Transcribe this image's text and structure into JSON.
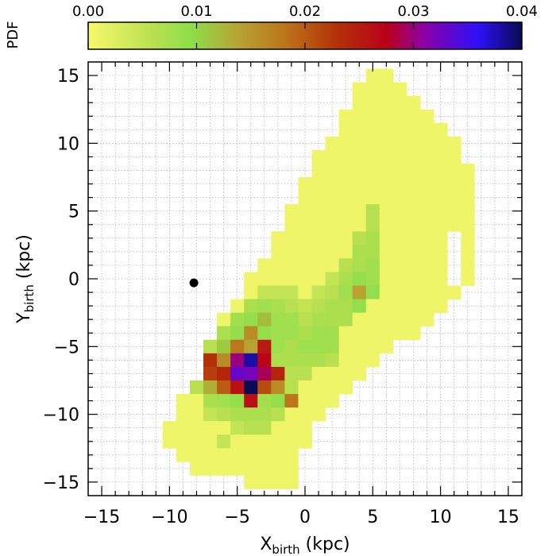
{
  "chart_data": {
    "type": "heatmap",
    "title": "",
    "xlabel": "X",
    "xlabel_sub": "birth",
    "xlabel_unit": " (kpc)",
    "ylabel": "Y",
    "ylabel_sub": "birth",
    "ylabel_unit": " (kpc)",
    "xlim": [
      -16,
      16
    ],
    "ylim": [
      -16,
      16
    ],
    "xticks": [
      -15,
      -10,
      -5,
      0,
      5,
      10,
      15
    ],
    "yticks": [
      -15,
      -10,
      -5,
      0,
      5,
      10,
      15
    ],
    "xtick_labels": [
      "−15",
      "−10",
      "−5",
      "0",
      "5",
      "10",
      "15"
    ],
    "ytick_labels": [
      "−15",
      "−10",
      "−5",
      "0",
      "5",
      "10",
      "15"
    ],
    "grid_step": 1,
    "grid": true,
    "bin_size": 1,
    "colorbar": {
      "label": "PDF",
      "min": 0.0,
      "max": 0.04,
      "ticks": [
        0.0,
        0.01,
        0.02,
        0.03,
        0.04
      ],
      "tick_labels": [
        "0.00",
        "0.01",
        "0.02",
        "0.03",
        "0.04"
      ],
      "stops": [
        {
          "v": 0.0,
          "color": "#f8f86c"
        },
        {
          "v": 0.006,
          "color": "#b8e050"
        },
        {
          "v": 0.0095,
          "color": "#8ede4a"
        },
        {
          "v": 0.014,
          "color": "#b8a232"
        },
        {
          "v": 0.0185,
          "color": "#bc7018"
        },
        {
          "v": 0.023,
          "color": "#b43008"
        },
        {
          "v": 0.0275,
          "color": "#ba0018"
        },
        {
          "v": 0.031,
          "color": "#8c00a8"
        },
        {
          "v": 0.036,
          "color": "#2c10f8"
        },
        {
          "v": 0.04,
          "color": "#0a0a52"
        }
      ]
    },
    "default_value": 0.0008,
    "marker": {
      "x": -8.2,
      "y": -0.3,
      "label": "Sun position"
    },
    "occupied_rows": [
      {
        "y": 15,
        "x_from": 5,
        "x_to": 6
      },
      {
        "y": 14,
        "x_from": 4,
        "x_to": 7
      },
      {
        "y": 13,
        "x_from": 4,
        "x_to": 8
      },
      {
        "y": 12,
        "x_from": 3,
        "x_to": 9
      },
      {
        "y": 11,
        "x_from": 3,
        "x_to": 10
      },
      {
        "y": 10,
        "x_from": 2,
        "x_to": 11
      },
      {
        "y": 9,
        "x_from": 1,
        "x_to": 12
      },
      {
        "y": 8,
        "x_from": 1,
        "x_to": 12
      },
      {
        "y": 7,
        "x_from": 0,
        "x_to": 12
      },
      {
        "y": 6,
        "x_from": 0,
        "x_to": 12
      },
      {
        "y": 5,
        "x_from": -1,
        "x_to": 12
      },
      {
        "y": 4,
        "x_from": -1,
        "x_to": 12
      },
      {
        "y": 3,
        "x_from": -2,
        "x_to": 12
      },
      {
        "y": 2,
        "x_from": -2,
        "x_to": 12
      },
      {
        "y": 1,
        "x_from": -3,
        "x_to": 12
      },
      {
        "y": 0,
        "x_from": -4,
        "x_to": 12
      },
      {
        "y": -1,
        "x_from": -4,
        "x_to": 11
      },
      {
        "y": -2,
        "x_from": -5,
        "x_to": 10
      },
      {
        "y": -3,
        "x_from": -6,
        "x_to": 9
      },
      {
        "y": -4,
        "x_from": -6,
        "x_to": 8
      },
      {
        "y": -5,
        "x_from": -7,
        "x_to": 6
      },
      {
        "y": -6,
        "x_from": -7,
        "x_to": 5
      },
      {
        "y": -7,
        "x_from": -7,
        "x_to": 4
      },
      {
        "y": -8,
        "x_from": -8,
        "x_to": 3
      },
      {
        "y": -9,
        "x_from": -9,
        "x_to": 2
      },
      {
        "y": -10,
        "x_from": -9,
        "x_to": 1
      },
      {
        "y": -11,
        "x_from": -10,
        "x_to": 0
      },
      {
        "y": -12,
        "x_from": -10,
        "x_to": 0
      },
      {
        "y": -13,
        "x_from": -9,
        "x_to": -1
      },
      {
        "y": -14,
        "x_from": -8,
        "x_to": -1
      },
      {
        "y": -15,
        "x_from": -4,
        "x_to": -1
      }
    ],
    "holes": [
      {
        "x": 11,
        "y": 3
      },
      {
        "x": 11,
        "y": 2
      },
      {
        "x": 11,
        "y": 1
      },
      {
        "x": 11,
        "y": 0
      },
      {
        "x": 12,
        "y": 9
      }
    ],
    "cells": [
      {
        "x": 5,
        "y": 5,
        "v": 0.006
      },
      {
        "x": 5,
        "y": 4,
        "v": 0.006
      },
      {
        "x": 5,
        "y": 3,
        "v": 0.007
      },
      {
        "x": 5,
        "y": 2,
        "v": 0.007
      },
      {
        "x": 5,
        "y": 1,
        "v": 0.008
      },
      {
        "x": 5,
        "y": 0,
        "v": 0.008
      },
      {
        "x": 5,
        "y": -1,
        "v": 0.009
      },
      {
        "x": 4,
        "y": 3,
        "v": 0.006
      },
      {
        "x": 4,
        "y": 2,
        "v": 0.007
      },
      {
        "x": 4,
        "y": 1,
        "v": 0.007
      },
      {
        "x": 4,
        "y": 0,
        "v": 0.009
      },
      {
        "x": 4,
        "y": -1,
        "v": 0.014
      },
      {
        "x": 4,
        "y": -2,
        "v": 0.009
      },
      {
        "x": 3,
        "y": 1,
        "v": 0.006
      },
      {
        "x": 3,
        "y": 0,
        "v": 0.007
      },
      {
        "x": 3,
        "y": -1,
        "v": 0.008
      },
      {
        "x": 3,
        "y": -2,
        "v": 0.007
      },
      {
        "x": 3,
        "y": -3,
        "v": 0.007
      },
      {
        "x": 2,
        "y": 0,
        "v": 0.005
      },
      {
        "x": 2,
        "y": -1,
        "v": 0.006
      },
      {
        "x": 2,
        "y": -2,
        "v": 0.007
      },
      {
        "x": 2,
        "y": -3,
        "v": 0.007
      },
      {
        "x": 2,
        "y": -4,
        "v": 0.008
      },
      {
        "x": 2,
        "y": -5,
        "v": 0.008
      },
      {
        "x": 2,
        "y": -6,
        "v": 0.006
      },
      {
        "x": 1,
        "y": -1,
        "v": 0.005
      },
      {
        "x": 1,
        "y": -2,
        "v": 0.006
      },
      {
        "x": 1,
        "y": -3,
        "v": 0.007
      },
      {
        "x": 1,
        "y": -4,
        "v": 0.008
      },
      {
        "x": 1,
        "y": -5,
        "v": 0.008
      },
      {
        "x": 1,
        "y": -6,
        "v": 0.007
      },
      {
        "x": 0,
        "y": -2,
        "v": 0.005
      },
      {
        "x": 0,
        "y": -3,
        "v": 0.006
      },
      {
        "x": 0,
        "y": -4,
        "v": 0.007
      },
      {
        "x": 0,
        "y": -5,
        "v": 0.008
      },
      {
        "x": 0,
        "y": -6,
        "v": 0.007
      },
      {
        "x": 0,
        "y": -7,
        "v": 0.006
      },
      {
        "x": -1,
        "y": -1,
        "v": 0.005
      },
      {
        "x": -1,
        "y": -2,
        "v": 0.006
      },
      {
        "x": -1,
        "y": -3,
        "v": 0.008
      },
      {
        "x": -1,
        "y": -4,
        "v": 0.008
      },
      {
        "x": -1,
        "y": -5,
        "v": 0.007
      },
      {
        "x": -1,
        "y": -6,
        "v": 0.007
      },
      {
        "x": -1,
        "y": -7,
        "v": 0.006
      },
      {
        "x": -1,
        "y": -8,
        "v": 0.006
      },
      {
        "x": -1,
        "y": -9,
        "v": 0.018
      },
      {
        "x": -2,
        "y": -1,
        "v": 0.005
      },
      {
        "x": -2,
        "y": -2,
        "v": 0.007
      },
      {
        "x": -2,
        "y": -3,
        "v": 0.008
      },
      {
        "x": -2,
        "y": -4,
        "v": 0.008
      },
      {
        "x": -2,
        "y": -5,
        "v": 0.008
      },
      {
        "x": -2,
        "y": -6,
        "v": 0.007
      },
      {
        "x": -2,
        "y": -7,
        "v": 0.024
      },
      {
        "x": -2,
        "y": -8,
        "v": 0.016
      },
      {
        "x": -2,
        "y": -9,
        "v": 0.009
      },
      {
        "x": -2,
        "y": -10,
        "v": 0.006
      },
      {
        "x": -3,
        "y": -1,
        "v": 0.005
      },
      {
        "x": -3,
        "y": -2,
        "v": 0.008
      },
      {
        "x": -3,
        "y": -3,
        "v": 0.012
      },
      {
        "x": -3,
        "y": -4,
        "v": 0.009
      },
      {
        "x": -3,
        "y": -5,
        "v": 0.025
      },
      {
        "x": -3,
        "y": -6,
        "v": 0.027
      },
      {
        "x": -3,
        "y": -7,
        "v": 0.029
      },
      {
        "x": -3,
        "y": -8,
        "v": 0.021
      },
      {
        "x": -3,
        "y": -9,
        "v": 0.008
      },
      {
        "x": -3,
        "y": -10,
        "v": 0.007
      },
      {
        "x": -3,
        "y": -11,
        "v": 0.006
      },
      {
        "x": -4,
        "y": -2,
        "v": 0.007
      },
      {
        "x": -4,
        "y": -3,
        "v": 0.009
      },
      {
        "x": -4,
        "y": -4,
        "v": 0.016
      },
      {
        "x": -4,
        "y": -5,
        "v": 0.014
      },
      {
        "x": -4,
        "y": -6,
        "v": 0.038
      },
      {
        "x": -4,
        "y": -7,
        "v": 0.032
      },
      {
        "x": -4,
        "y": -8,
        "v": 0.04
      },
      {
        "x": -4,
        "y": -9,
        "v": 0.026
      },
      {
        "x": -4,
        "y": -10,
        "v": 0.007
      },
      {
        "x": -4,
        "y": -11,
        "v": 0.006
      },
      {
        "x": -5,
        "y": -3,
        "v": 0.008
      },
      {
        "x": -5,
        "y": -4,
        "v": 0.009
      },
      {
        "x": -5,
        "y": -5,
        "v": 0.018
      },
      {
        "x": -5,
        "y": -6,
        "v": 0.03
      },
      {
        "x": -5,
        "y": -7,
        "v": 0.033
      },
      {
        "x": -5,
        "y": -8,
        "v": 0.026
      },
      {
        "x": -5,
        "y": -9,
        "v": 0.009
      },
      {
        "x": -5,
        "y": -10,
        "v": 0.007
      },
      {
        "x": -5,
        "y": -11,
        "v": 0.005
      },
      {
        "x": -6,
        "y": -4,
        "v": 0.007
      },
      {
        "x": -6,
        "y": -5,
        "v": 0.011
      },
      {
        "x": -6,
        "y": -6,
        "v": 0.016
      },
      {
        "x": -6,
        "y": -7,
        "v": 0.024
      },
      {
        "x": -6,
        "y": -8,
        "v": 0.02
      },
      {
        "x": -6,
        "y": -9,
        "v": 0.008
      },
      {
        "x": -6,
        "y": -10,
        "v": 0.006
      },
      {
        "x": -6,
        "y": -12,
        "v": 0.005
      },
      {
        "x": -7,
        "y": -5,
        "v": 0.006
      },
      {
        "x": -7,
        "y": -6,
        "v": 0.023
      },
      {
        "x": -7,
        "y": -7,
        "v": 0.022
      },
      {
        "x": -7,
        "y": -8,
        "v": 0.013
      },
      {
        "x": -7,
        "y": -9,
        "v": 0.007
      },
      {
        "x": -7,
        "y": -10,
        "v": 0.005
      },
      {
        "x": -8,
        "y": -7,
        "v": 0.005
      },
      {
        "x": -8,
        "y": -8,
        "v": 0.006
      }
    ]
  }
}
